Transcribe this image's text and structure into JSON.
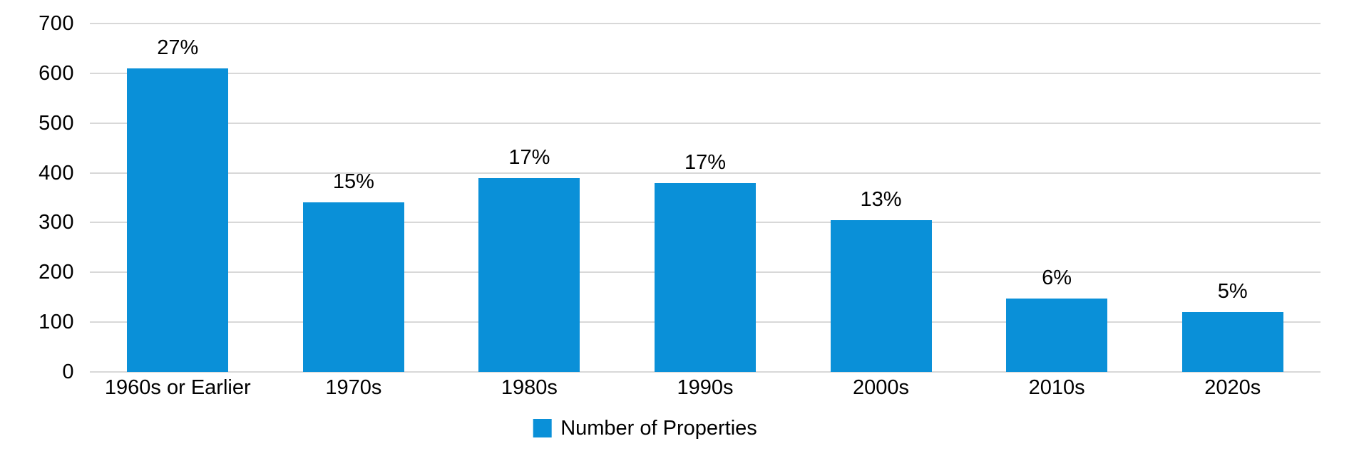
{
  "chart_data": {
    "type": "bar",
    "title": "",
    "xlabel": "",
    "ylabel": "",
    "categories": [
      "1960s or Earlier",
      "1970s",
      "1980s",
      "1990s",
      "2000s",
      "2010s",
      "2020s"
    ],
    "series": [
      {
        "name": "Number of Properties",
        "values": [
          610,
          340,
          390,
          380,
          305,
          148,
          120
        ],
        "bar_labels": [
          "27%",
          "15%",
          "17%",
          "17%",
          "13%",
          "6%",
          "5%"
        ]
      }
    ],
    "ylim": [
      0,
      700
    ],
    "ytick_step": 100,
    "ytick_labels": [
      "0",
      "100",
      "200",
      "300",
      "400",
      "500",
      "600",
      "700"
    ],
    "grid": "horizontal-on",
    "legend": {
      "position": "bottom-center",
      "items": [
        {
          "label": "Number of Properties",
          "swatch_color": "#0a90d8"
        }
      ]
    },
    "colors": {
      "bar": "#0a90d8",
      "gridline": "#d8d8d8",
      "text": "#000000",
      "background": "#ffffff"
    }
  }
}
